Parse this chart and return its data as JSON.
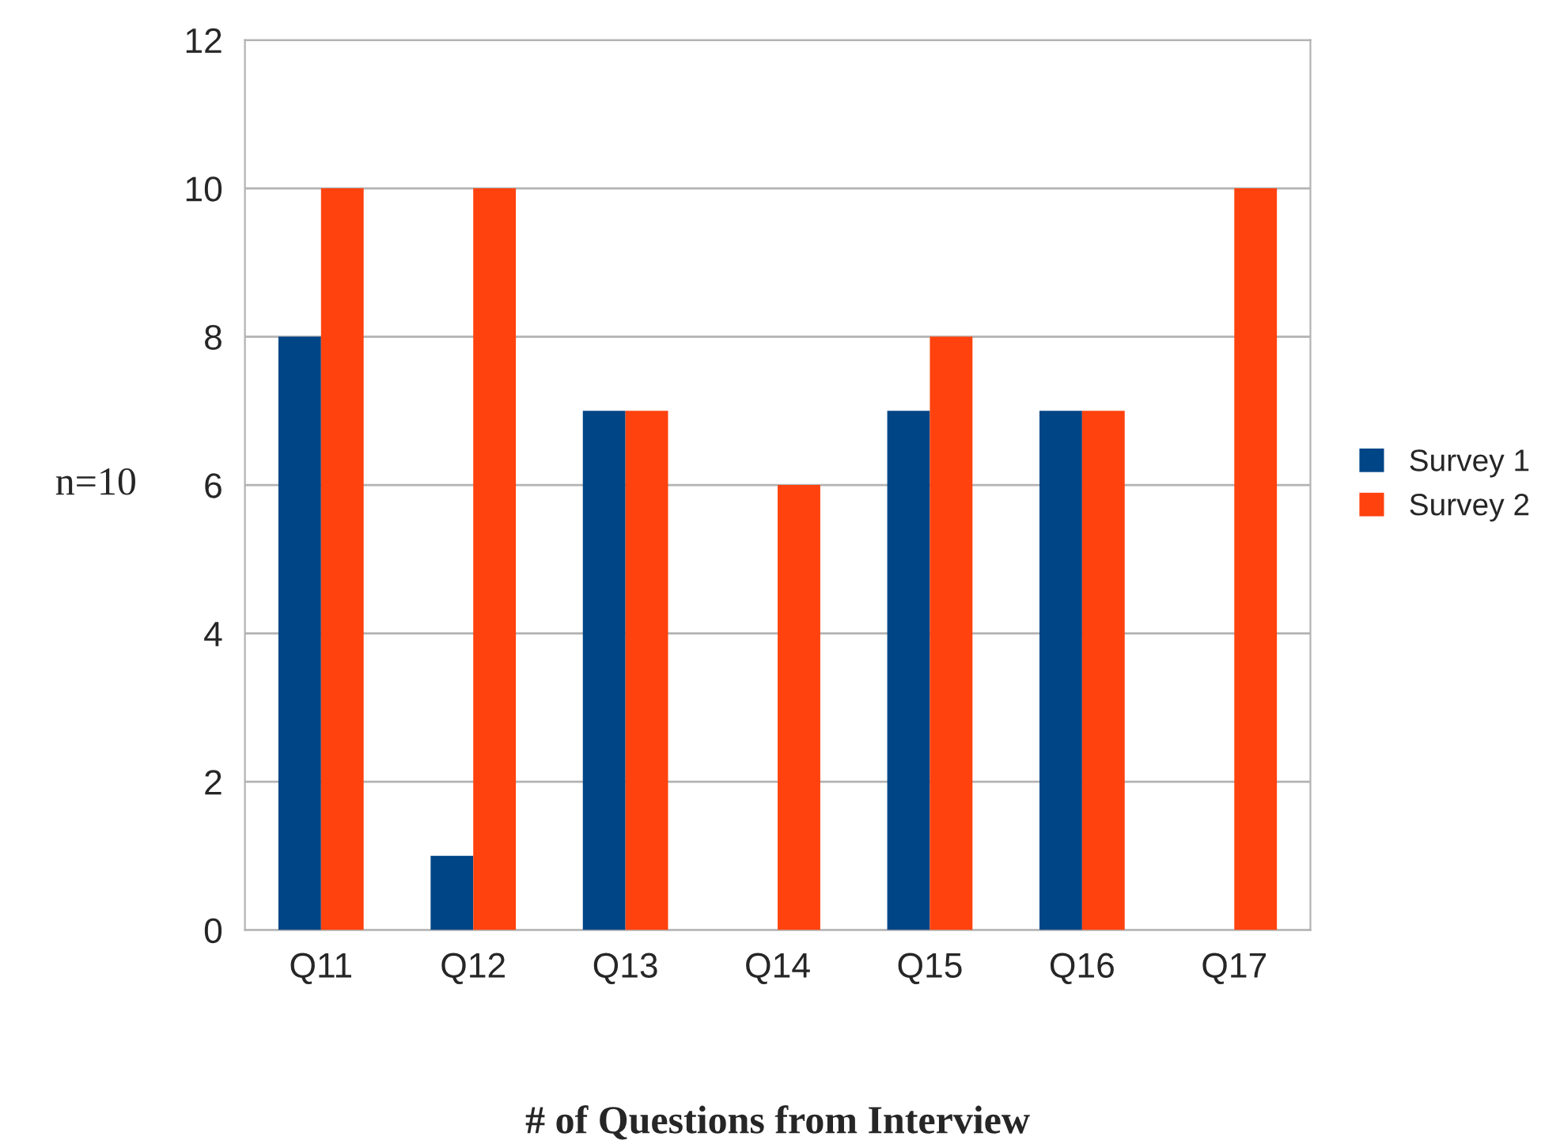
{
  "chart_data": {
    "type": "bar",
    "ylabel": "n=10",
    "xlabel": "# of Questions from Interview",
    "categories": [
      "Q11",
      "Q12",
      "Q13",
      "Q14",
      "Q15",
      "Q16",
      "Q17"
    ],
    "series": [
      {
        "name": "Survey 1",
        "color": "#004586",
        "values": [
          8,
          1,
          7,
          0,
          7,
          7,
          0
        ]
      },
      {
        "name": "Survey 2",
        "color": "#ff420e",
        "values": [
          10,
          10,
          7,
          6,
          8,
          7,
          10
        ]
      }
    ],
    "ylim": [
      0,
      12
    ],
    "yticks": [
      0,
      2,
      4,
      6,
      8,
      10,
      12
    ],
    "grid": "y",
    "legend": "right"
  }
}
